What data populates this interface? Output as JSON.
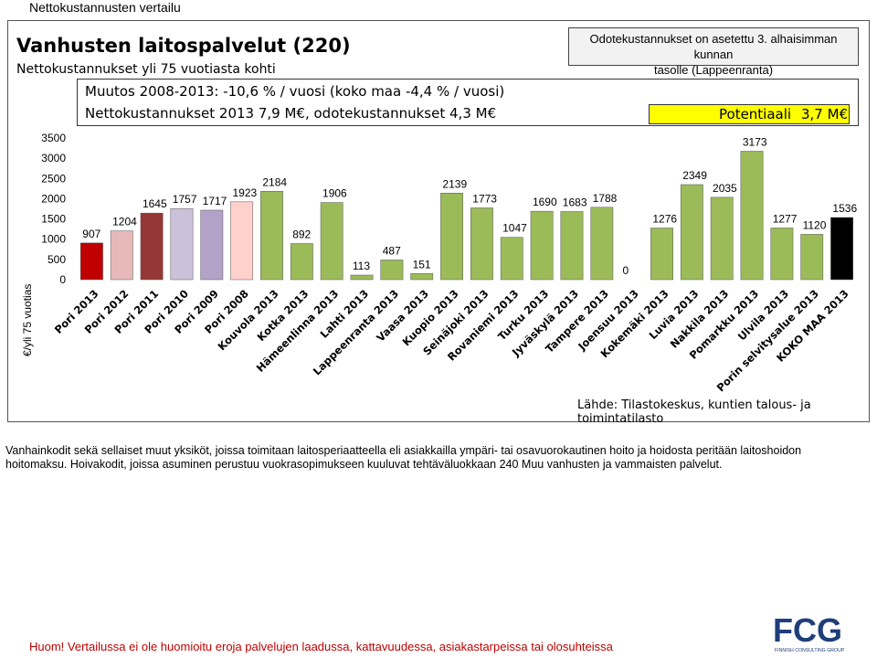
{
  "page_title": "Nettokustannusten vertailu",
  "header": {
    "title": "Vanhusten laitospalvelut (220)",
    "subtitle": "Nettokustannukset yli 75 vuotiasta kohti"
  },
  "note_box": {
    "line1": "Odotekustannukset on asetettu 3. alhaisimman kunnan",
    "line2": "tasolle (Lappeenranta)"
  },
  "info_box": {
    "line1": "Muutos 2008-2013: -10,6 % / vuosi (koko maa -4,4 % / vuosi)",
    "line2": "Nettokustannukset 2013 7,9 M€, odotekustannukset 4,3 M€"
  },
  "potential": {
    "label": "Potentiaali",
    "value": "3,7 M€"
  },
  "source": "Lähde: Tilastokeskus, kuntien talous- ja toimintatilasto",
  "description": "Vanhainkodit sekä sellaiset muut yksiköt, joissa toimitaan laitosperiaatteella eli asiakkailla ympäri- tai osavuorokautinen hoito ja hoidosta peritään laitoshoidon hoitomaksu. Hoivakodit, joissa asuminen perustuu vuokrasopimukseen kuuluvat tehtäväluokkaan 240 Muu vanhusten ja vammaisten palvelut.",
  "footnote": "Huom! Vertailussa ei ole huomioitu eroja palvelujen laadussa, kattavuudessa, asiakastarpeissa tai olosuhteissa",
  "logo": {
    "text": "FCG",
    "tagline": "FINNISH CONSULTING GROUP"
  },
  "chart_data": {
    "type": "bar",
    "ylabel": "€/yli 75 vuotias",
    "ylim": [
      0,
      3500
    ],
    "yticks": [
      0,
      500,
      1000,
      1500,
      2000,
      2500,
      3000,
      3500
    ],
    "categories": [
      "Pori 2013",
      "Pori 2012",
      "Pori 2011",
      "Pori 2010",
      "Pori 2009",
      "Pori 2008",
      "Kouvola 2013",
      "Kotka 2013",
      "Hämeenlinna 2013",
      "Lahti 2013",
      "Lappeenranta 2013",
      "Vaasa 2013",
      "Kuopio 2013",
      "Seinäjoki 2013",
      "Rovaniemi 2013",
      "Turku 2013",
      "Jyväskylä 2013",
      "Tampere 2013",
      "Joensuu 2013",
      "Kokemäki 2013",
      "Luvia 2013",
      "Nakkila 2013",
      "Pomarkku 2013",
      "Ulvila 2013",
      "Porin selvitysalue 2013",
      "KOKO MAA 2013"
    ],
    "values": [
      907,
      1204,
      1645,
      1757,
      1717,
      1923,
      2184,
      892,
      1906,
      113,
      487,
      151,
      2139,
      1773,
      1047,
      1690,
      1683,
      1788,
      0,
      1276,
      2349,
      2035,
      3173,
      1277,
      1120,
      1536
    ],
    "colors": [
      "#c00000",
      "#e6b9b8",
      "#953735",
      "#ccc1da",
      "#b3a2c7",
      "#ffd1cc",
      "#9bbb59",
      "#9bbb59",
      "#9bbb59",
      "#9bbb59",
      "#9bbb59",
      "#9bbb59",
      "#9bbb59",
      "#9bbb59",
      "#9bbb59",
      "#9bbb59",
      "#9bbb59",
      "#9bbb59",
      "#9bbb59",
      "#9bbb59",
      "#9bbb59",
      "#9bbb59",
      "#9bbb59",
      "#9bbb59",
      "#9bbb59",
      "#000000"
    ],
    "grid": false,
    "legend": "none"
  }
}
